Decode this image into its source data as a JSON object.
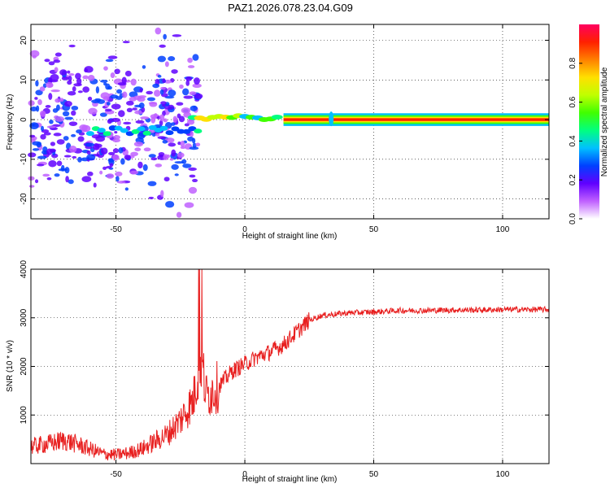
{
  "title": "PAZ1.2026.078.23.04.G09",
  "chart_data": [
    {
      "type": "heatmap",
      "xlabel": "Height of straight line (km)",
      "ylabel": "Frequency (Hz)",
      "xlim": [
        -83,
        118
      ],
      "ylim": [
        -25,
        24
      ],
      "x_ticks": [
        "-50",
        "0",
        "50",
        "100"
      ],
      "y_ticks": [
        "20",
        "10",
        "0",
        "-10",
        "-20"
      ],
      "colorbar": {
        "label": "Normalized spectral amplitude",
        "range": [
          0,
          1
        ],
        "ticks": [
          "0.0",
          "0.2",
          "0.4",
          "0.6",
          "0.8"
        ],
        "colors": [
          "#ffffff",
          "#c060ff",
          "#6000ff",
          "#0040ff",
          "#00c0ff",
          "#00ff80",
          "#40ff00",
          "#c0ff00",
          "#ffe000",
          "#ff8000",
          "#ff2000",
          "#ff0060"
        ]
      },
      "grid": true,
      "description_of_signal": "steady tone near 0 Hz for heights above about -20 km; scattered broadband energy below"
    },
    {
      "type": "line",
      "xlabel": "Height of straight line (km)",
      "ylabel": "SNR (10 * v/v)",
      "xlim": [
        -83,
        118
      ],
      "ylim": [
        0,
        4000
      ],
      "x_ticks": [
        "-50",
        "0",
        "50",
        "100"
      ],
      "y_ticks": [
        "4000",
        "3000",
        "2000",
        "1000"
      ],
      "color": "#e82020",
      "grid": true,
      "series": [
        {
          "x": [
            -83,
            -75,
            -70,
            -65,
            -60,
            -55,
            -50,
            -45,
            -40,
            -35,
            -30,
            -25,
            -20,
            -17,
            -15,
            -10,
            -5,
            0,
            5,
            10,
            15,
            20,
            25,
            30,
            40,
            50,
            60,
            70,
            80,
            90,
            100,
            110,
            118
          ],
          "y": [
            350,
            420,
            480,
            400,
            300,
            200,
            180,
            220,
            300,
            450,
            600,
            900,
            1300,
            2200,
            1400,
            1600,
            1900,
            2050,
            2200,
            2300,
            2450,
            2700,
            2950,
            3050,
            3100,
            3120,
            3150,
            3150,
            3160,
            3160,
            3170,
            3170,
            3170
          ]
        }
      ]
    }
  ]
}
